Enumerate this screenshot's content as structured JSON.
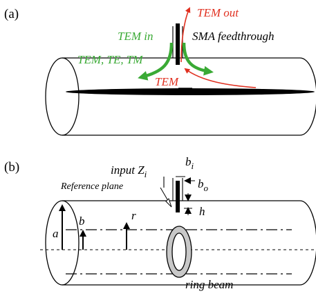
{
  "panel_a": {
    "label": "(a)",
    "tem_out": "TEM out",
    "tem_in": "TEM in",
    "feedthrough": "SMA feedthrough",
    "modes": "TEM, TE, TM",
    "tem_bottom": "TEM"
  },
  "panel_b": {
    "label": "(b)",
    "input_z": "input Z",
    "input_z_sub": "i",
    "b_i": "b",
    "b_i_sub": "i",
    "b_o": "b",
    "b_o_sub": "o",
    "reference_plane": "Reference plane",
    "h": "h",
    "a": "a",
    "b": "b",
    "r": "r",
    "ring_beam": "ring beam"
  },
  "colors": {
    "ink": "#000000",
    "green": "#3aaa35",
    "red": "#e03020",
    "ring_fill": "#c8c8c8"
  }
}
